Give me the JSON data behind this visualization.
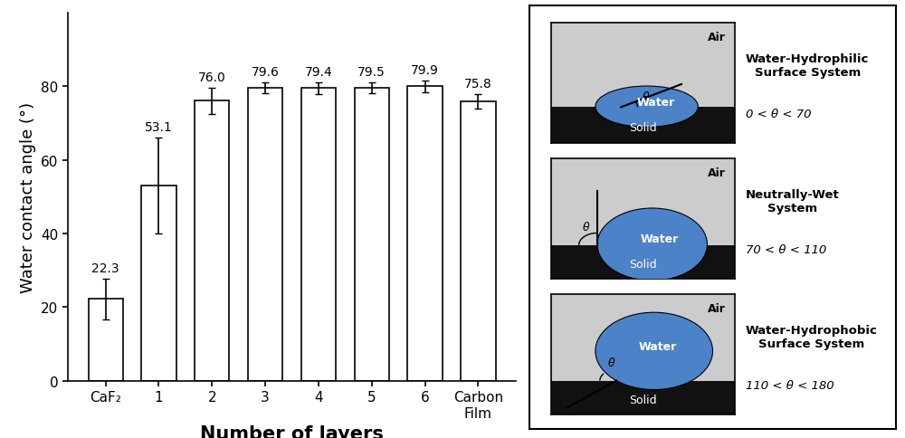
{
  "categories": [
    "CaF₂",
    "1",
    "2",
    "3",
    "4",
    "5",
    "6",
    "Carbon\nFilm"
  ],
  "values": [
    22.3,
    53.1,
    76.0,
    79.6,
    79.4,
    79.5,
    79.9,
    75.8
  ],
  "errors": [
    5.5,
    13.0,
    3.5,
    1.5,
    1.5,
    1.5,
    1.5,
    2.0
  ],
  "bar_color": "#ffffff",
  "bar_edgecolor": "#000000",
  "ylabel": "Water contact angle (°)",
  "xlabel": "Number of layers",
  "ylim": [
    0,
    100
  ],
  "yticks": [
    0,
    20,
    40,
    60,
    80
  ],
  "label_fontsize": 13,
  "tick_fontsize": 11,
  "annotation_fontsize": 10,
  "bg_color": "#ffffff",
  "diagram_bg": "#cccccc",
  "solid_color": "#111111",
  "water_color": "#4b82c8",
  "right_panel_labels": [
    "Water-Hydrophilic\nSurface System",
    "Neutrally-Wet\nSystem",
    "Water-Hydrophobic\nSurface System"
  ],
  "right_panel_ranges": [
    "0 < θ < 70",
    "70 < θ < 110",
    "110 < θ < 180"
  ]
}
